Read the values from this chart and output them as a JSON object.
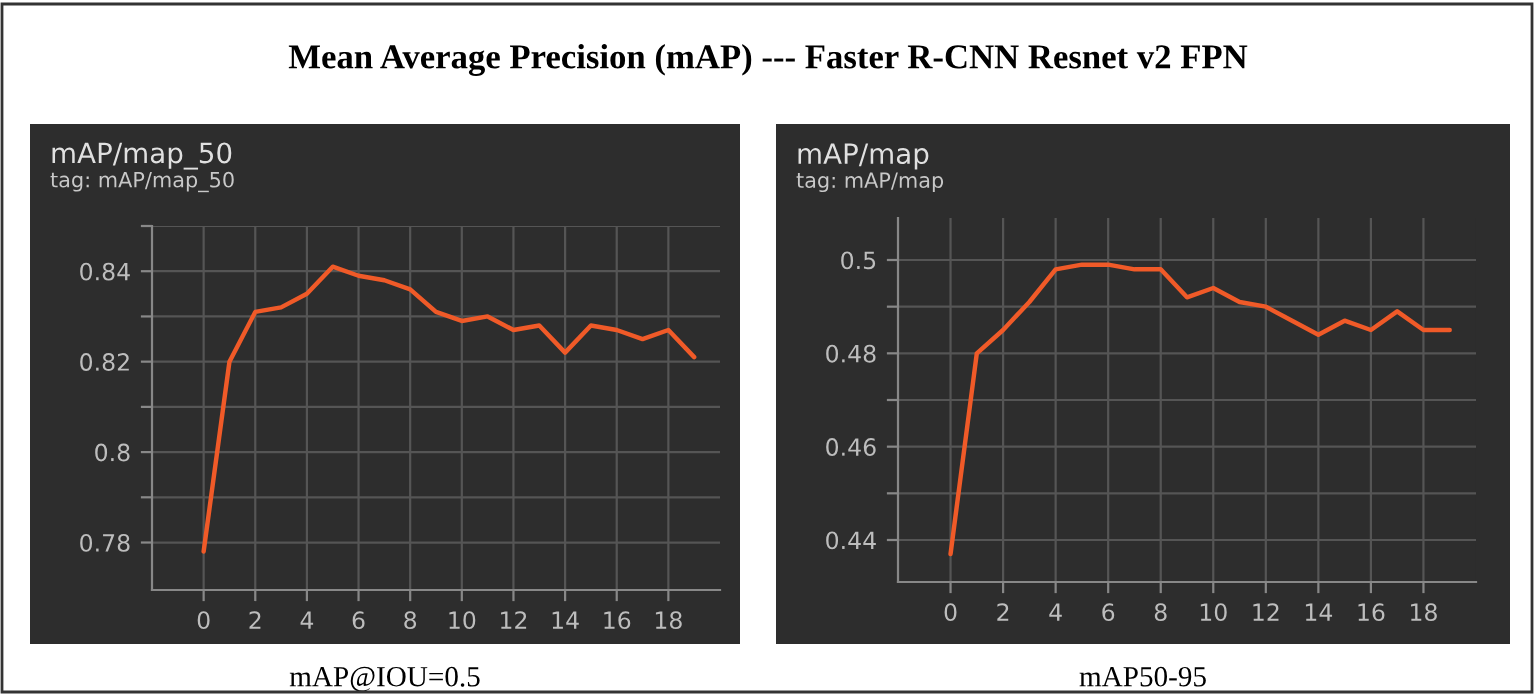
{
  "chart_data": [
    {
      "type": "line",
      "title": "mAP/map_50",
      "subtitle": "tag: mAP/map_50",
      "xlabel": "mAP@IOU=0.5",
      "annotations": [
        "Mean Average Precision (mAP) --- Faster R-CNN Resnet v2 FPN"
      ],
      "x": [
        0,
        1,
        2,
        3,
        4,
        5,
        6,
        7,
        8,
        9,
        10,
        11,
        12,
        13,
        14,
        15,
        16,
        17,
        18,
        19
      ],
      "series": [
        {
          "color": "#f05a28",
          "values": [
            0.778,
            0.82,
            0.831,
            0.832,
            0.835,
            0.841,
            0.839,
            0.838,
            0.836,
            0.831,
            0.829,
            0.83,
            0.827,
            0.828,
            0.822,
            0.828,
            0.827,
            0.825,
            0.827,
            0.821
          ]
        }
      ],
      "xlim": [
        -2,
        20
      ],
      "ylim": [
        0.7695,
        0.85
      ],
      "xticks": [
        0,
        2,
        4,
        6,
        8,
        10,
        12,
        14,
        16,
        18
      ],
      "yticks": [
        0.78,
        {
          "value": 0.79,
          "label": null
        },
        0.8,
        {
          "value": 0.81,
          "label": null
        },
        0.82,
        {
          "value": 0.83,
          "label": null
        },
        0.84,
        {
          "value": 0.85,
          "label": null
        }
      ],
      "grid": true
    },
    {
      "type": "line",
      "title": "mAP/map",
      "subtitle": "tag: mAP/map",
      "xlabel": "mAP50-95",
      "x": [
        0,
        1,
        2,
        3,
        4,
        5,
        6,
        7,
        8,
        9,
        10,
        11,
        12,
        13,
        14,
        15,
        16,
        17,
        18,
        19
      ],
      "series": [
        {
          "color": "#f05a28",
          "values": [
            0.437,
            0.48,
            0.485,
            0.491,
            0.498,
            0.499,
            0.499,
            0.498,
            0.498,
            0.492,
            0.494,
            0.491,
            0.49,
            0.487,
            0.484,
            0.487,
            0.485,
            0.489,
            0.485,
            0.485
          ]
        }
      ],
      "xlim": [
        -2,
        20
      ],
      "ylim": [
        0.431,
        0.509
      ],
      "xticks": [
        0,
        2,
        4,
        6,
        8,
        10,
        12,
        14,
        16,
        18
      ],
      "yticks": [
        0.44,
        {
          "value": 0.45,
          "label": null
        },
        0.46,
        {
          "value": 0.47,
          "label": null
        },
        0.48,
        {
          "value": 0.49,
          "label": null
        },
        0.5
      ],
      "grid": true
    }
  ]
}
